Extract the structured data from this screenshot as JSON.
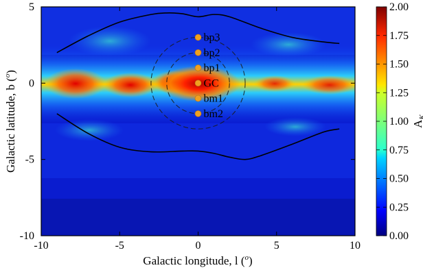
{
  "chart_data": {
    "type": "heatmap",
    "title": "",
    "xlabel": "Galactic longitude, l (",
    "xlabel_sup": "o",
    "xlabel_close": ")",
    "ylabel": "Galactic latitude, b (",
    "ylabel_sup": "o",
    "ylabel_close": ")",
    "xlim": [
      -10,
      10
    ],
    "ylim": [
      -10,
      5
    ],
    "xticks": [
      -10,
      -5,
      0,
      5,
      10
    ],
    "xtick_labels": [
      "-10",
      "-5",
      "0",
      "5",
      "10"
    ],
    "yticks": [
      -10,
      -5,
      0,
      5
    ],
    "ytick_labels": [
      "-10",
      "-5",
      "0",
      "5"
    ],
    "colorbar": {
      "label": "A",
      "label_sub": "K",
      "range": [
        0,
        2
      ],
      "ticks": [
        0,
        0.25,
        0.5,
        0.75,
        1.0,
        1.25,
        1.5,
        1.75,
        2.0
      ],
      "tick_labels": [
        "0.00",
        "0.25",
        "0.50",
        "0.75",
        "1.00",
        "1.25",
        "1.50",
        "1.75",
        "2.00"
      ],
      "colormap": "jet"
    },
    "points": [
      {
        "label": "bp3",
        "l": 0,
        "b": 3,
        "color": "#f0a020"
      },
      {
        "label": "bp2",
        "l": 0,
        "b": 2,
        "color": "#f0a020"
      },
      {
        "label": "bp1",
        "l": 0,
        "b": 1,
        "color": "#f0a020"
      },
      {
        "label": "GC",
        "l": 0,
        "b": 0,
        "color": "#f0a020"
      },
      {
        "label": "bm1",
        "l": 0,
        "b": -1,
        "color": "#f0a020"
      },
      {
        "label": "bm2",
        "l": 0,
        "b": -2,
        "color": "#f0a020"
      }
    ],
    "dashed_circles": [
      {
        "center_l": 0,
        "center_b": 0,
        "radius_deg": 3
      },
      {
        "center_l": 0,
        "center_b": 0,
        "radius_deg": 2
      }
    ],
    "boundary_curves": {
      "upper": [
        [
          -9,
          2
        ],
        [
          -7,
          3.1
        ],
        [
          -5,
          4
        ],
        [
          -3,
          4.5
        ],
        [
          -2,
          4.6
        ],
        [
          -1,
          4.55
        ],
        [
          0,
          4.35
        ],
        [
          1,
          4.5
        ],
        [
          2,
          4.35
        ],
        [
          4,
          3.6
        ],
        [
          6,
          3
        ],
        [
          8,
          2.7
        ],
        [
          9,
          2.6
        ]
      ],
      "lower": [
        [
          -9,
          -2
        ],
        [
          -7,
          -3.3
        ],
        [
          -5,
          -4.2
        ],
        [
          -3,
          -4.5
        ],
        [
          -1,
          -4.45
        ],
        [
          0,
          -4.45
        ],
        [
          1,
          -4.6
        ],
        [
          2,
          -4.85
        ],
        [
          3,
          -5
        ],
        [
          4,
          -4.75
        ],
        [
          6,
          -4
        ],
        [
          8,
          -3.2
        ],
        [
          9,
          -3
        ]
      ]
    }
  }
}
